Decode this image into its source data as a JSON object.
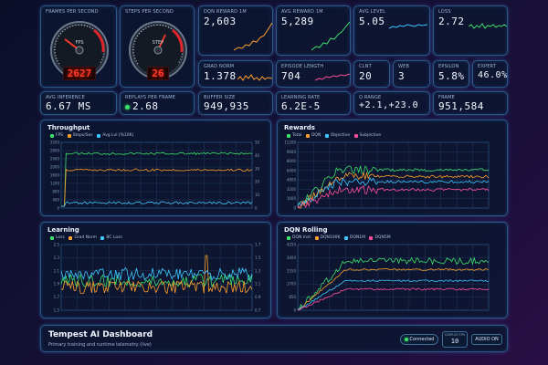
{
  "gauges": {
    "fps": {
      "label": "FRAMES PER SECOND",
      "value": "2627",
      "dial": "FPS",
      "ticks": [
        "0",
        "500",
        "1000",
        "1500",
        "2000",
        "2500",
        "3000",
        "3500"
      ]
    },
    "sps": {
      "label": "STEPS PER SECOND",
      "value": "26",
      "dial": "STEP",
      "ticks": [
        "0",
        "10",
        "20",
        "30",
        "40",
        "50"
      ]
    }
  },
  "metrics": {
    "dqn_reward_1m": {
      "label": "DQN REWARD 1M",
      "value": "2,603"
    },
    "avg_reward_1m": {
      "label": "AVG REWARD 1M",
      "value": "5,289"
    },
    "avg_level": {
      "label": "AVG LEVEL",
      "value": "5.05"
    },
    "loss": {
      "label": "LOSS",
      "value": "2.72"
    },
    "grad_norm": {
      "label": "GRAD NORM",
      "value": "1.378"
    },
    "episode_length": {
      "label": "EPISODE LENGTH",
      "value": "704"
    },
    "clnt": {
      "label": "CLNT",
      "value": "20"
    },
    "web": {
      "label": "WEB",
      "value": "3"
    },
    "epsilon": {
      "label": "EPSILON",
      "value": "5.8%"
    },
    "expert": {
      "label": "EXPERT",
      "value": "46.0%"
    },
    "avg_inference": {
      "label": "AVG INFERENCE",
      "value": "6.67 MS"
    },
    "replays_per_frame": {
      "label": "REPLAYS PER FRAME",
      "value": "2.68"
    },
    "buffer_size": {
      "label": "BUFFER SIZE",
      "value": "949,935"
    },
    "learning_rate": {
      "label": "LEARNING RATE",
      "value": "6.2E-5"
    },
    "q_range": {
      "label": "Q RANGE",
      "value": "+2.1,+23.0"
    },
    "frame": {
      "label": "FRAME",
      "value": "951,584"
    }
  },
  "panels": {
    "throughput": {
      "title": "Throughput",
      "legend": [
        {
          "name": "FPS",
          "color": "#3ee06c"
        },
        {
          "name": "Steps/Sec",
          "color": "#ffa02a"
        },
        {
          "name": "Avg Lvl (%10K)",
          "color": "#3ec8ff"
        }
      ],
      "y_left": [
        "3200",
        "2800",
        "2400",
        "2000",
        "1600",
        "1200",
        "800",
        "400",
        "0"
      ],
      "y_right": [
        "50",
        "40",
        "30",
        "20",
        "10",
        "0"
      ]
    },
    "rewards": {
      "title": "Rewards",
      "legend": [
        {
          "name": "Total",
          "color": "#3ee06c"
        },
        {
          "name": "DQN",
          "color": "#ffa02a"
        },
        {
          "name": "Objective",
          "color": "#3ec8ff"
        },
        {
          "name": "Subjective",
          "color": "#ff4f9a"
        }
      ],
      "y_left": [
        "11200",
        "9600",
        "8000",
        "6400",
        "4800",
        "3200",
        "1600",
        "0"
      ]
    },
    "learning": {
      "title": "Learning",
      "legend": [
        {
          "name": "Loss",
          "color": "#3ee06c"
        },
        {
          "name": "Grad Norm",
          "color": "#ffa02a"
        },
        {
          "name": "BC Loss",
          "color": "#3ec8ff"
        }
      ],
      "y_left": [
        "2.5",
        "2.3",
        "2.1",
        "1.9",
        "1.7",
        "1.5"
      ],
      "y_right": [
        "1.7",
        "1.5",
        "1.3",
        "1.1",
        "0.9",
        "0.7"
      ]
    },
    "dqn_rolling": {
      "title": "DQN Rolling",
      "legend": [
        {
          "name": "DQN Inst",
          "color": "#3ee06c"
        },
        {
          "name": "DQN100K",
          "color": "#ffa02a"
        },
        {
          "name": "DQN1M",
          "color": "#3ec8ff"
        },
        {
          "name": "DQN5M",
          "color": "#ff4f9a"
        }
      ],
      "y_left": [
        "4250",
        "3400",
        "2550",
        "1700",
        "850",
        "0"
      ]
    }
  },
  "footer": {
    "title": "Tempest AI Dashboard",
    "subtitle": "Primary training and runtime telemetry (live)",
    "connected": "Connected",
    "display_label": "DISPLAY FPS",
    "display_value": "10",
    "audio": "AUDIO ON"
  }
}
